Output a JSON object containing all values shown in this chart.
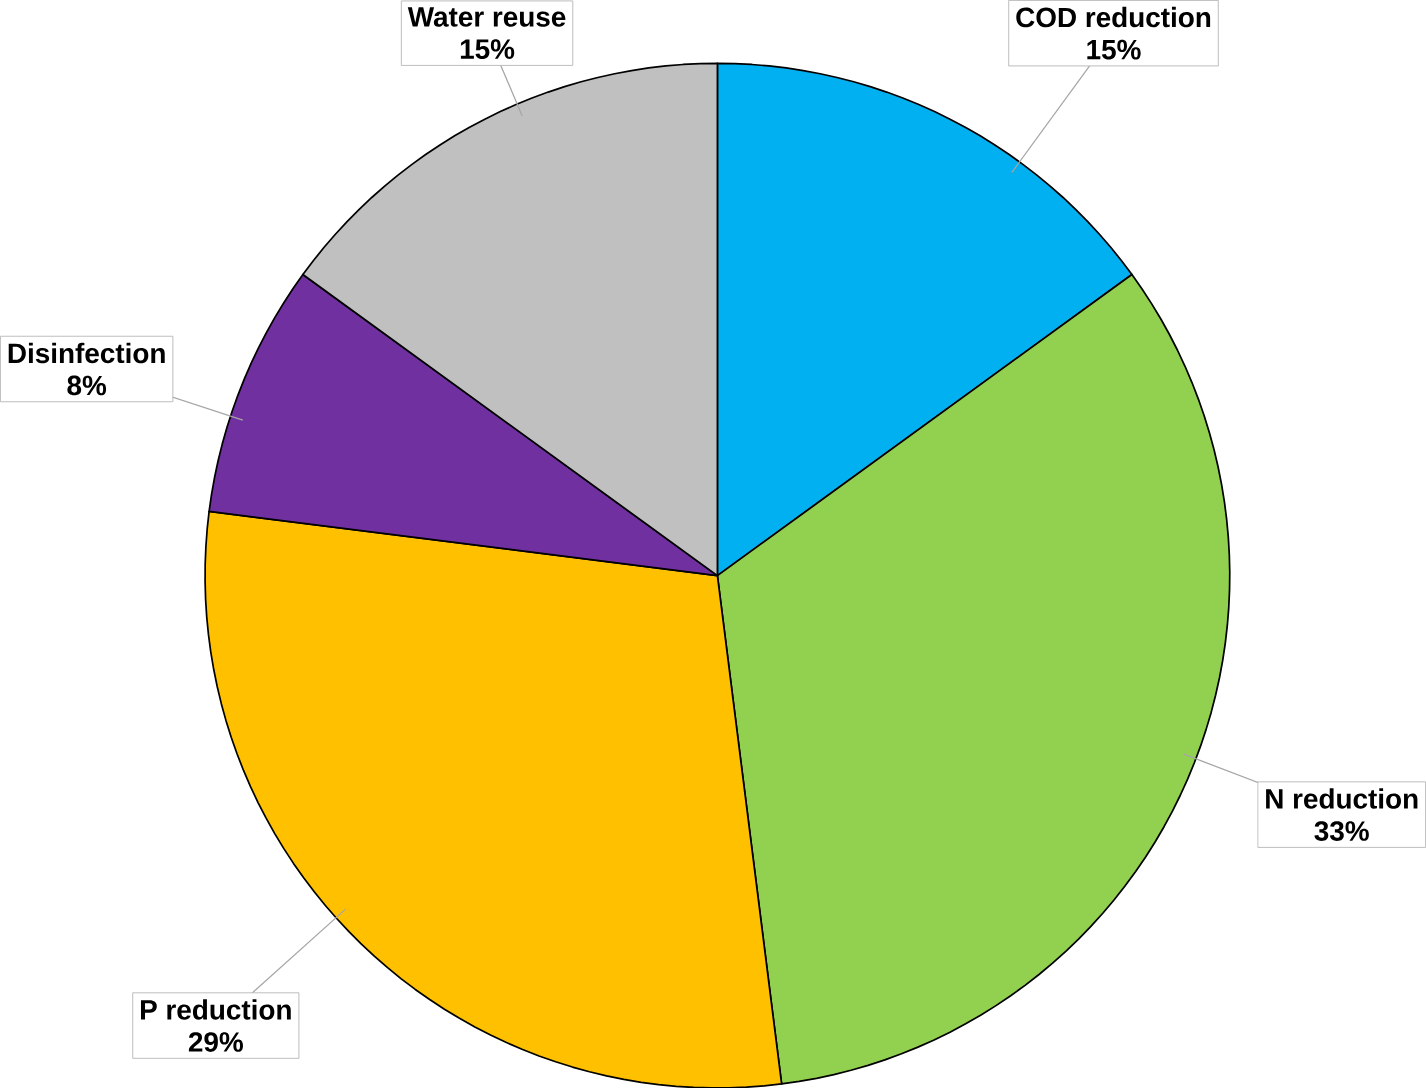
{
  "chart_data": {
    "type": "pie",
    "categories": [
      "COD reduction",
      "N reduction",
      "P reduction",
      "Disinfection",
      "Water reuse"
    ],
    "values": [
      15,
      33,
      29,
      8,
      15
    ],
    "colors": [
      "#00b0f0",
      "#92d050",
      "#ffc000",
      "#7030a0",
      "#c0c0c0"
    ],
    "value_labels": [
      "15%",
      "33%",
      "29%",
      "8%",
      "15%"
    ]
  }
}
